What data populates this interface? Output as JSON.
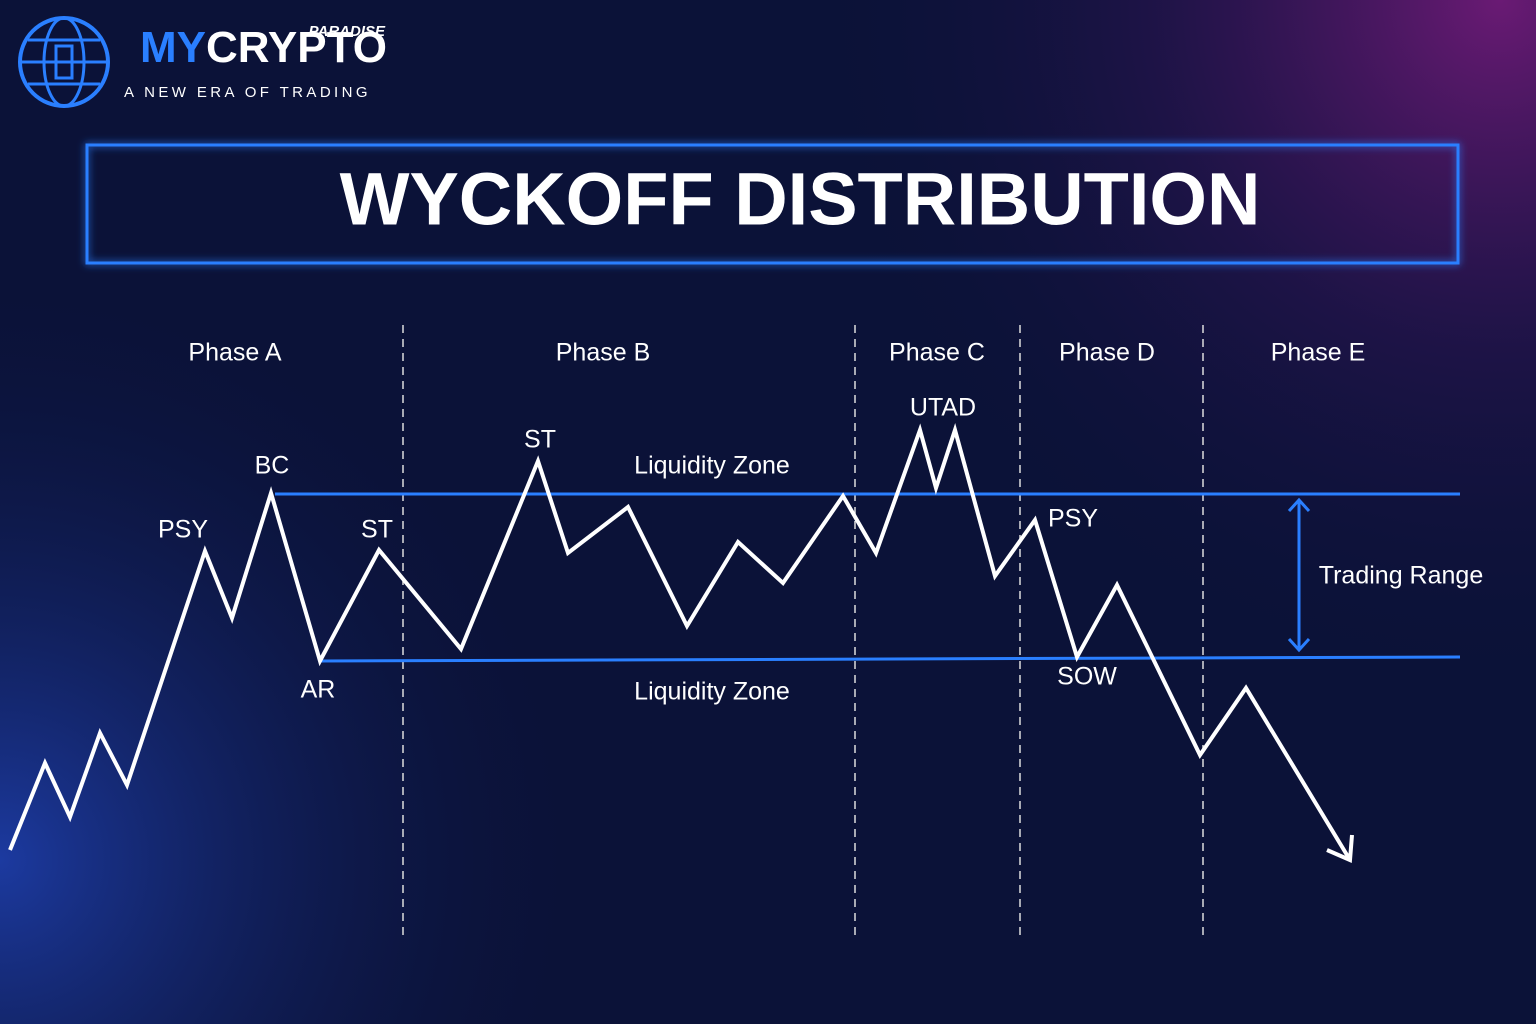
{
  "logo": {
    "brand_prefix": "MY",
    "brand_main": "CRYPTO",
    "brand_tag": "PARADISE",
    "tagline": "A NEW ERA OF TRADING"
  },
  "title": "WYCKOFF DISTRIBUTION",
  "phases": [
    "Phase A",
    "Phase B",
    "Phase C",
    "Phase D",
    "Phase E"
  ],
  "events": [
    "PSY",
    "BC",
    "AR",
    "ST",
    "ST",
    "UTAD",
    "PSY",
    "SOW"
  ],
  "zones": [
    "Liquidity Zone",
    "Liquidity Zone"
  ],
  "range_label": "Trading Range"
}
